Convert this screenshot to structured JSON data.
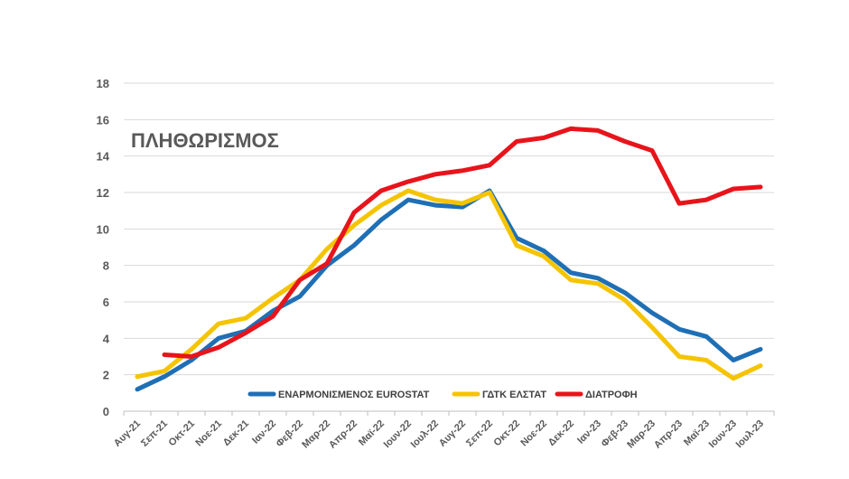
{
  "chart_data": {
    "type": "line",
    "title": "ΠΛΗΘΩΡΙΣΜΟΣ",
    "xlabel": "",
    "ylabel": "",
    "ylim": [
      0,
      18
    ],
    "yticks": [
      "0",
      "2",
      "4",
      "6",
      "8",
      "10",
      "12",
      "14",
      "16",
      "18"
    ],
    "grid": true,
    "legend_position": "bottom-center",
    "categories": [
      "Αυγ-21",
      "Σεπ-21",
      "Οκτ-21",
      "Νοε-21",
      "Δεκ-21",
      "Ιαν-22",
      "Φεβ-22",
      "Μαρ-22",
      "Απρ-22",
      "Μαϊ-22",
      "Ιουν-22",
      "Ιουλ-22",
      "Αυγ-22",
      "Σεπ-22",
      "Οκτ-22",
      "Νοε-22",
      "Δεκ-22",
      "Ιαν-23",
      "Φεβ-23",
      "Μαρ-23",
      "Απρ-23",
      "Μαϊ-23",
      "Ιουν-23",
      "Ιουλ-23"
    ],
    "series": [
      {
        "name": "ΕΝΑΡΜΟΝΙΣΜΕΝΟΣ EUROSTAT",
        "color": "#1f6fb5",
        "values": [
          1.2,
          1.9,
          2.8,
          4.0,
          4.4,
          5.5,
          6.3,
          8.0,
          9.1,
          10.5,
          11.6,
          11.3,
          11.2,
          12.1,
          9.5,
          8.8,
          7.6,
          7.3,
          6.5,
          5.4,
          4.5,
          4.1,
          2.8,
          3.4
        ]
      },
      {
        "name": "ΓΔΤΚ ΕΛΣΤΑΤ",
        "color": "#f5c400",
        "values": [
          1.9,
          2.2,
          3.4,
          4.8,
          5.1,
          6.2,
          7.2,
          8.9,
          10.2,
          11.3,
          12.1,
          11.6,
          11.4,
          12.0,
          9.1,
          8.5,
          7.2,
          7.0,
          6.1,
          4.6,
          3.0,
          2.8,
          1.8,
          2.5
        ]
      },
      {
        "name": "ΔΙΑΤΡΟΦΗ",
        "color": "#e8141b",
        "values": [
          null,
          3.1,
          3.0,
          3.5,
          4.3,
          5.2,
          7.2,
          8.1,
          10.9,
          12.1,
          12.6,
          13.0,
          13.2,
          13.5,
          14.8,
          15.0,
          15.5,
          15.4,
          14.8,
          14.3,
          11.4,
          11.6,
          12.2,
          12.3
        ]
      }
    ]
  }
}
